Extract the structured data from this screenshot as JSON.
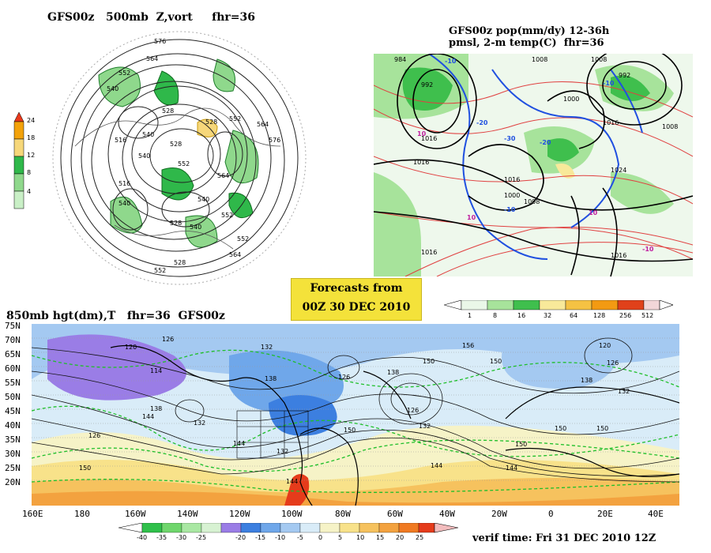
{
  "panels": {
    "upper_left": {
      "title": "GFS00z   500mb  Z,vort     fhr=36",
      "contour_labels": [
        "576",
        "564",
        "552",
        "540",
        "528",
        "516",
        "540",
        "528",
        "552",
        "564",
        "528",
        "540",
        "552",
        "564",
        "576",
        "540",
        "528",
        "552",
        "528",
        "540",
        "516",
        "540",
        "552",
        "564",
        "552"
      ],
      "colorbar_labels": [
        "24",
        "18",
        "12",
        "8",
        "4"
      ],
      "colorbar_colors": [
        "#e8391c",
        "#f3a20a",
        "#f6d77a",
        "#2fb84a",
        "#8fd88c",
        "#c9efc6"
      ]
    },
    "upper_right": {
      "title_line1": "GFS00z pop(mm/dy) 12-36h",
      "title_line2": "pmsl, 2-m temp(C)  fhr=36",
      "contour_labels": [
        "984",
        "992",
        "1008",
        "1000",
        "1008",
        "1016",
        "1024",
        "1016",
        "1016",
        "1008",
        "1000",
        "992",
        "1016",
        "1008",
        "1016",
        "1016"
      ],
      "temp_labels": [
        "-10",
        "-20",
        "-30",
        "-20",
        "-10",
        "-10",
        "10",
        "10",
        "10",
        "-10"
      ],
      "colorbar_labels": [
        "1",
        "8",
        "16",
        "32",
        "64",
        "128",
        "256",
        "512"
      ],
      "colorbar_colors": [
        "#eaf7e8",
        "#a7e39b",
        "#3fbf4d",
        "#f8e99a",
        "#f5c243",
        "#f39a12",
        "#e0411a",
        "#f2d6d8"
      ]
    },
    "forecast_box": {
      "line1": "Forecasts from",
      "line2": "00Z 30 DEC 2010"
    },
    "bottom": {
      "title": "850mb hgt(dm),T   fhr=36  GFS00z",
      "lat_labels": [
        "75N",
        "70N",
        "65N",
        "60N",
        "55N",
        "50N",
        "45N",
        "40N",
        "35N",
        "30N",
        "25N",
        "20N"
      ],
      "lon_labels": [
        "160E",
        "180",
        "160W",
        "140W",
        "120W",
        "100W",
        "80W",
        "60W",
        "40W",
        "20W",
        "0",
        "20E",
        "40E"
      ],
      "contour_labels": [
        "120",
        "126",
        "132",
        "114",
        "138",
        "138",
        "126",
        "132",
        "144",
        "144",
        "126",
        "132",
        "138",
        "150",
        "132",
        "150",
        "144",
        "156",
        "150",
        "150",
        "120",
        "126",
        "132",
        "138",
        "150",
        "144",
        "150",
        "150",
        "144",
        "126"
      ],
      "colorbar_labels": [
        "-40",
        "-35",
        "-30",
        "-25",
        "-20",
        "-15",
        "-10",
        "-5",
        "0",
        "5",
        "10",
        "15",
        "20",
        "25"
      ],
      "colorbar_colors": [
        "#2fc04a",
        "#6fd66c",
        "#a9e8a3",
        "#d7f2d2",
        "#9a7de6",
        "#3c7fe0",
        "#6fa7ea",
        "#a4c9f1",
        "#d9ecf8",
        "#f6f3c7",
        "#f8e28a",
        "#f6c25e",
        "#f3a23f",
        "#f07a22",
        "#e53b1b",
        "#f2bcbd"
      ],
      "verif_time": "verif time: Fri 31 DEC 2010 12Z"
    }
  }
}
